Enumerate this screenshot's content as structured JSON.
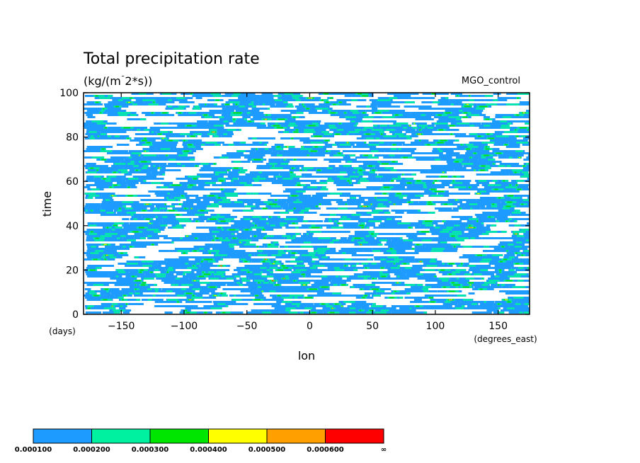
{
  "chart_data": {
    "type": "heatmap",
    "title": "Total precipitation rate",
    "subtitle": "(kg/(m^2*s))",
    "dataset_label": "MGO_control",
    "xlabel": "lon",
    "ylabel": "time",
    "x_units": "(degrees_east)",
    "y_units": "(days)",
    "xlim": [
      -180,
      175
    ],
    "ylim": [
      0,
      100
    ],
    "x_ticks": [
      -150,
      -100,
      -50,
      0,
      50,
      100,
      150
    ],
    "y_ticks": [
      0,
      20,
      40,
      60,
      80,
      100
    ],
    "grid": false,
    "colorbar": {
      "levels": [
        "0.000100",
        "0.000200",
        "0.000300",
        "0.000400",
        "0.000500",
        "0.000600",
        "∞"
      ],
      "colors": [
        "#1e9bff",
        "#00f2a0",
        "#00e600",
        "#ffff00",
        "#ffa000",
        "#ff0000"
      ]
    }
  }
}
